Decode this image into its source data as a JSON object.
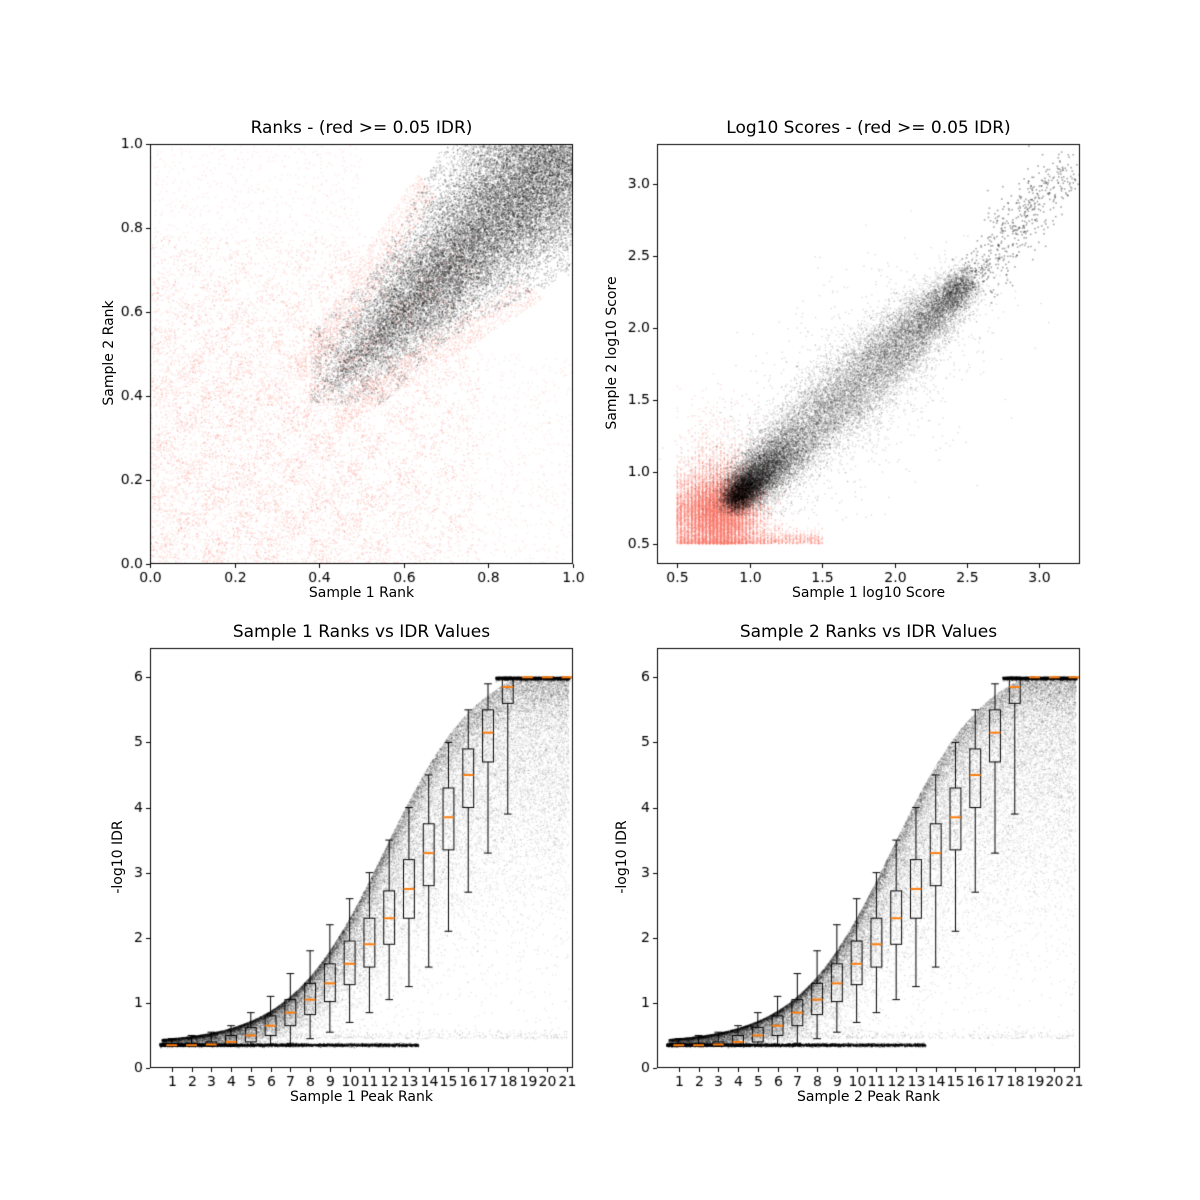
{
  "figure": {
    "background": "#ffffff"
  },
  "palette": {
    "significant": "#000000",
    "insignificant": "#FA8072",
    "median": "#ff7f0e",
    "axis": "#000000"
  },
  "chart_data": [
    {
      "id": "ranks",
      "type": "scatter",
      "title": "Ranks - (red >= 0.05 IDR)",
      "xlabel": "Sample 1 Rank",
      "ylabel": "Sample 2 Rank",
      "xlim": [
        0.0,
        1.0
      ],
      "ylim": [
        0.0,
        1.0
      ],
      "xticks": [
        0.0,
        0.2,
        0.4,
        0.6,
        0.8,
        1.0
      ],
      "yticks": [
        0.0,
        0.2,
        0.4,
        0.6,
        0.8,
        1.0
      ],
      "xtick_format": "1dp",
      "ytick_format": "1dp",
      "legend_note": "red = IDR >= 0.05, black = IDR < 0.05",
      "series": [
        {
          "name": "insignificant-checker",
          "color": "#FA8072",
          "alpha": 0.28,
          "size": 1.3,
          "generator": {
            "kind": "rank-checker",
            "seed": 11,
            "count": 16000,
            "cell": 0.0625,
            "extent": 0.78,
            "dense_keep": 0.9,
            "sparse_keep": 0.24
          }
        },
        {
          "name": "insignificant-spread",
          "color": "#FA8072",
          "alpha": 0.2,
          "size": 1.2,
          "generator": {
            "kind": "rank-spread",
            "seed": 12,
            "count": 5200,
            "limit": 0.5
          }
        },
        {
          "name": "insignificant-fringe",
          "color": "#FA8072",
          "alpha": 0.24,
          "size": 1.2,
          "generator": {
            "kind": "rank-fringe",
            "seed": 13,
            "count": 2600,
            "apex": 0.41,
            "t_max": 0.78
          }
        },
        {
          "name": "significant-fan",
          "color": "#000000",
          "alpha": 0.2,
          "size": 1.4,
          "generator": {
            "kind": "rank-fan",
            "seed": 14,
            "count": 26000,
            "apex": 0.41
          }
        },
        {
          "name": "significant-mottle",
          "color": "#000000",
          "alpha": 0.16,
          "size": 1.3,
          "generator": {
            "kind": "rank-mottle",
            "seed": 15,
            "count": 7000,
            "lo": 0.38,
            "hi": 0.74,
            "cell": 0.045
          }
        }
      ]
    },
    {
      "id": "scores",
      "type": "scatter",
      "title": "Log10 Scores - (red >= 0.05 IDR)",
      "xlabel": "Sample 1 log10 Score",
      "ylabel": "Sample 2 log10 Score",
      "xlim": [
        0.36,
        3.28
      ],
      "ylim": [
        0.36,
        3.28
      ],
      "xticks": [
        0.5,
        1.0,
        1.5,
        2.0,
        2.5,
        3.0
      ],
      "yticks": [
        0.5,
        1.0,
        1.5,
        2.0,
        2.5,
        3.0
      ],
      "xtick_format": "1dp",
      "ytick_format": "1dp",
      "legend_note": "red = IDR >= 0.05, black = IDR < 0.05",
      "series": [
        {
          "name": "insignificant-blob",
          "color": "#FA8072",
          "alpha": 0.28,
          "size": 1.3,
          "generator": {
            "kind": "score-insig",
            "seed": 21,
            "count": 17000
          }
        },
        {
          "name": "significant-diagonal",
          "color": "#000000",
          "alpha": 0.15,
          "size": 1.3,
          "generator": {
            "kind": "score-sig",
            "seed": 22,
            "count": 28000
          }
        },
        {
          "name": "significant-tail",
          "color": "#000000",
          "alpha": 0.35,
          "size": 1.6,
          "generator": {
            "kind": "score-tail",
            "seed": 23,
            "count": 550
          }
        }
      ]
    },
    {
      "id": "idr1",
      "type": "scatter+box",
      "title": "Sample 1 Ranks vs IDR Values",
      "xlabel": "Sample 1 Peak Rank",
      "ylabel": "-log10 IDR",
      "xlim": [
        -0.1,
        21.3
      ],
      "ylim": [
        0,
        6.45
      ],
      "xticks": [
        1,
        2,
        3,
        4,
        5,
        6,
        7,
        8,
        9,
        10,
        11,
        12,
        13,
        14,
        15,
        16,
        17,
        18,
        19,
        20,
        21
      ],
      "yticks": [
        0,
        1,
        2,
        3,
        4,
        5,
        6
      ],
      "xtick_format": "int",
      "ytick_format": "int",
      "envelope": {
        "mid": 11.8,
        "scale": 2.4,
        "x0": 0.5,
        "x1": 18.5,
        "y_base": 0.45,
        "y_max": 6.0
      },
      "series": [
        {
          "name": "idr-band",
          "color": "#000000",
          "alpha": 0.1,
          "size": 1.2,
          "generator": {
            "kind": "idr-band",
            "seed": 31,
            "count": 42000
          }
        },
        {
          "name": "idr-floor-line",
          "color": "#000000",
          "alpha": 0.3,
          "size": 1.2,
          "generator": {
            "kind": "idr-floor",
            "seed": 32,
            "count": 5000,
            "y": 0.35,
            "x_max": 13.5
          }
        },
        {
          "name": "idr-top-line",
          "color": "#000000",
          "alpha": 0.3,
          "size": 1.3,
          "generator": {
            "kind": "idr-top",
            "seed": 33,
            "count": 2600,
            "x_min": 17.4,
            "y": 6.0
          }
        },
        {
          "name": "idr-sparse",
          "color": "#000000",
          "alpha": 0.12,
          "size": 1.2,
          "generator": {
            "kind": "idr-sparse",
            "seed": 34,
            "count": 1000
          }
        }
      ],
      "boxplot": {
        "color": "#000000",
        "median_color": "#ff7f0e",
        "box_width": 0.55,
        "ranks": [
          1,
          2,
          3,
          4,
          5,
          6,
          7,
          8,
          9,
          10,
          11,
          12,
          13,
          14,
          15,
          16,
          17,
          18,
          19,
          20,
          21
        ],
        "median": [
          0.35,
          0.35,
          0.36,
          0.4,
          0.5,
          0.65,
          0.85,
          1.05,
          1.3,
          1.6,
          1.9,
          2.3,
          2.75,
          3.3,
          3.85,
          4.5,
          5.15,
          5.85,
          6.0,
          6.0,
          6.0
        ],
        "q1": [
          0.34,
          0.34,
          0.34,
          0.35,
          0.4,
          0.5,
          0.65,
          0.82,
          1.02,
          1.28,
          1.55,
          1.9,
          2.3,
          2.8,
          3.35,
          4.0,
          4.7,
          5.6,
          6.0,
          6.0,
          6.0
        ],
        "q3": [
          0.37,
          0.38,
          0.4,
          0.5,
          0.62,
          0.8,
          1.05,
          1.3,
          1.6,
          1.95,
          2.3,
          2.72,
          3.2,
          3.75,
          4.3,
          4.9,
          5.5,
          6.0,
          6.0,
          6.0,
          6.0
        ],
        "whisker_lo": [
          0.33,
          0.33,
          0.33,
          0.33,
          0.34,
          0.35,
          0.38,
          0.45,
          0.55,
          0.7,
          0.85,
          1.05,
          1.25,
          1.55,
          2.1,
          2.7,
          3.3,
          3.9,
          6.0,
          6.0,
          6.0
        ],
        "whisker_hi": [
          0.45,
          0.5,
          0.55,
          0.65,
          0.85,
          1.1,
          1.45,
          1.8,
          2.2,
          2.6,
          3.0,
          3.5,
          4.0,
          4.5,
          5.0,
          5.5,
          5.9,
          6.0,
          6.0,
          6.0,
          6.0
        ]
      }
    },
    {
      "id": "idr2",
      "type": "scatter+box",
      "title": "Sample 2 Ranks vs IDR Values",
      "xlabel": "Sample 2 Peak Rank",
      "ylabel": "-log10 IDR",
      "xlim": [
        -0.1,
        21.3
      ],
      "ylim": [
        0,
        6.45
      ],
      "xticks": [
        1,
        2,
        3,
        4,
        5,
        6,
        7,
        8,
        9,
        10,
        11,
        12,
        13,
        14,
        15,
        16,
        17,
        18,
        19,
        20,
        21
      ],
      "yticks": [
        0,
        1,
        2,
        3,
        4,
        5,
        6
      ],
      "xtick_format": "int",
      "ytick_format": "int",
      "envelope": {
        "mid": 11.8,
        "scale": 2.4,
        "x0": 0.5,
        "x1": 18.5,
        "y_base": 0.45,
        "y_max": 6.0
      },
      "series": [
        {
          "name": "idr-band",
          "color": "#000000",
          "alpha": 0.1,
          "size": 1.2,
          "generator": {
            "kind": "idr-band",
            "seed": 41,
            "count": 42000
          }
        },
        {
          "name": "idr-floor-line",
          "color": "#000000",
          "alpha": 0.3,
          "size": 1.2,
          "generator": {
            "kind": "idr-floor",
            "seed": 42,
            "count": 5000,
            "y": 0.35,
            "x_max": 13.5
          }
        },
        {
          "name": "idr-top-line",
          "color": "#000000",
          "alpha": 0.3,
          "size": 1.3,
          "generator": {
            "kind": "idr-top",
            "seed": 43,
            "count": 2600,
            "x_min": 17.4,
            "y": 6.0
          }
        },
        {
          "name": "idr-sparse",
          "color": "#000000",
          "alpha": 0.12,
          "size": 1.2,
          "generator": {
            "kind": "idr-sparse",
            "seed": 44,
            "count": 1000
          }
        }
      ],
      "boxplot": {
        "color": "#000000",
        "median_color": "#ff7f0e",
        "box_width": 0.55,
        "ranks": [
          1,
          2,
          3,
          4,
          5,
          6,
          7,
          8,
          9,
          10,
          11,
          12,
          13,
          14,
          15,
          16,
          17,
          18,
          19,
          20,
          21
        ],
        "median": [
          0.35,
          0.35,
          0.36,
          0.4,
          0.5,
          0.65,
          0.85,
          1.05,
          1.3,
          1.6,
          1.9,
          2.3,
          2.75,
          3.3,
          3.85,
          4.5,
          5.15,
          5.85,
          6.0,
          6.0,
          6.0
        ],
        "q1": [
          0.34,
          0.34,
          0.34,
          0.35,
          0.4,
          0.5,
          0.65,
          0.82,
          1.02,
          1.28,
          1.55,
          1.9,
          2.3,
          2.8,
          3.35,
          4.0,
          4.7,
          5.6,
          6.0,
          6.0,
          6.0
        ],
        "q3": [
          0.37,
          0.38,
          0.4,
          0.5,
          0.62,
          0.8,
          1.05,
          1.3,
          1.6,
          1.95,
          2.3,
          2.72,
          3.2,
          3.75,
          4.3,
          4.9,
          5.5,
          6.0,
          6.0,
          6.0,
          6.0
        ],
        "whisker_lo": [
          0.33,
          0.33,
          0.33,
          0.33,
          0.34,
          0.35,
          0.38,
          0.45,
          0.55,
          0.7,
          0.85,
          1.05,
          1.25,
          1.55,
          2.1,
          2.7,
          3.3,
          3.9,
          6.0,
          6.0,
          6.0
        ],
        "whisker_hi": [
          0.45,
          0.5,
          0.55,
          0.65,
          0.85,
          1.1,
          1.45,
          1.8,
          2.2,
          2.6,
          3.0,
          3.5,
          4.0,
          4.5,
          5.0,
          5.5,
          5.9,
          6.0,
          6.0,
          6.0,
          6.0
        ]
      }
    }
  ]
}
